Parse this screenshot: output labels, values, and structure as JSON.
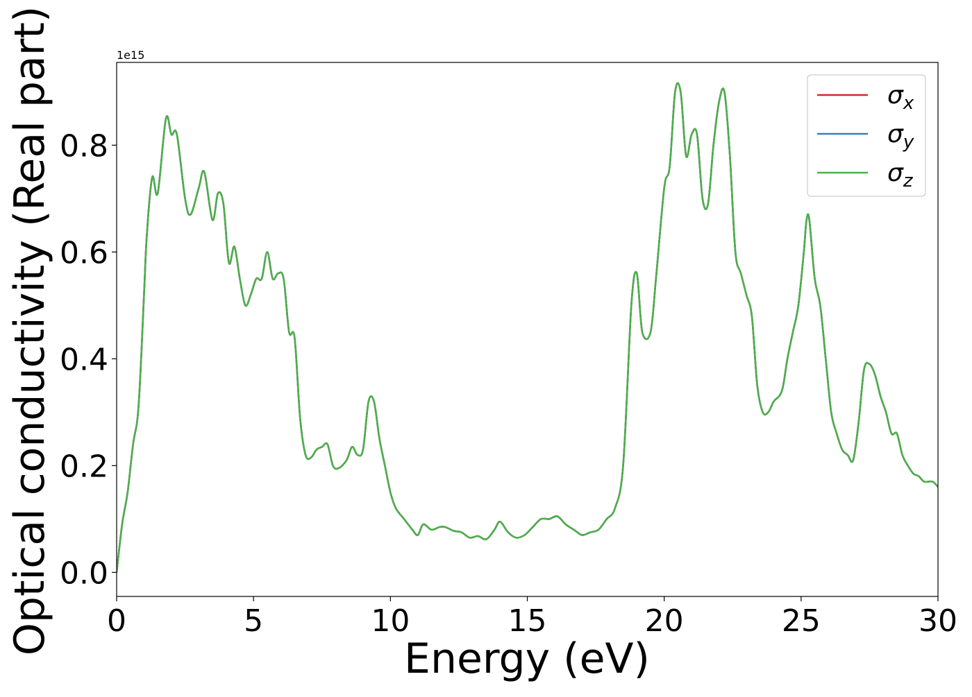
{
  "chart_data": {
    "type": "line",
    "xlabel": "Energy (eV)",
    "ylabel": "Optical conductivity (Real part)",
    "offset_label": "1e15",
    "xlim": [
      0,
      30
    ],
    "ylim": [
      -0.045,
      0.955
    ],
    "xticks": [
      0,
      5,
      10,
      15,
      20,
      25,
      30
    ],
    "xtick_labels": [
      "0",
      "5",
      "10",
      "15",
      "20",
      "25",
      "30"
    ],
    "yticks": [
      0.0,
      0.2,
      0.4,
      0.6,
      0.8
    ],
    "ytick_labels": [
      "0.0",
      "0.2",
      "0.4",
      "0.6",
      "0.8"
    ],
    "grid": false,
    "legend_position": "top-right",
    "series": [
      {
        "name": "σ",
        "subscript": "x",
        "color": "#d62728"
      },
      {
        "name": "σ",
        "subscript": "y",
        "color": "#3b7db5"
      },
      {
        "name": "σ",
        "subscript": "z",
        "color": "#4daf4a"
      }
    ],
    "x": [
      0,
      0.2,
      0.4,
      0.6,
      0.8,
      1.0,
      1.1,
      1.3,
      1.5,
      1.8,
      2.0,
      2.2,
      2.5,
      2.7,
      3.0,
      3.2,
      3.5,
      3.7,
      3.9,
      4.1,
      4.3,
      4.5,
      4.7,
      4.9,
      5.1,
      5.3,
      5.5,
      5.7,
      5.9,
      6.1,
      6.3,
      6.5,
      6.7,
      6.9,
      7.1,
      7.3,
      7.5,
      7.7,
      7.9,
      8.1,
      8.4,
      8.6,
      8.8,
      9.0,
      9.2,
      9.4,
      9.6,
      9.8,
      10.0,
      10.2,
      10.5,
      10.8,
      11.0,
      11.2,
      11.5,
      11.8,
      12.0,
      12.3,
      12.6,
      12.9,
      13.2,
      13.5,
      13.8,
      14.0,
      14.3,
      14.6,
      14.9,
      15.2,
      15.5,
      15.8,
      16.1,
      16.4,
      16.7,
      17.0,
      17.3,
      17.6,
      17.9,
      18.2,
      18.5,
      18.8,
      19.0,
      19.2,
      19.5,
      19.7,
      20.0,
      20.2,
      20.4,
      20.6,
      20.8,
      21.0,
      21.2,
      21.4,
      21.6,
      21.8,
      22.0,
      22.2,
      22.4,
      22.6,
      22.8,
      23.0,
      23.2,
      23.4,
      23.6,
      23.8,
      24.0,
      24.3,
      24.5,
      24.7,
      24.9,
      25.1,
      25.2,
      25.3,
      25.5,
      25.7,
      25.9,
      26.1,
      26.3,
      26.5,
      26.7,
      26.9,
      27.1,
      27.3,
      27.5,
      27.7,
      27.9,
      28.1,
      28.3,
      28.5,
      28.7,
      28.9,
      29.1,
      29.3,
      29.5,
      29.8,
      30.0
    ],
    "y": [
      0.0,
      0.09,
      0.15,
      0.24,
      0.31,
      0.52,
      0.63,
      0.74,
      0.71,
      0.85,
      0.82,
      0.82,
      0.7,
      0.67,
      0.72,
      0.75,
      0.66,
      0.71,
      0.69,
      0.58,
      0.61,
      0.55,
      0.5,
      0.52,
      0.55,
      0.55,
      0.6,
      0.55,
      0.56,
      0.55,
      0.45,
      0.44,
      0.29,
      0.22,
      0.215,
      0.23,
      0.235,
      0.24,
      0.2,
      0.195,
      0.21,
      0.235,
      0.22,
      0.23,
      0.32,
      0.32,
      0.25,
      0.2,
      0.15,
      0.12,
      0.1,
      0.08,
      0.07,
      0.09,
      0.08,
      0.085,
      0.085,
      0.078,
      0.075,
      0.065,
      0.068,
      0.062,
      0.08,
      0.095,
      0.075,
      0.065,
      0.07,
      0.085,
      0.1,
      0.1,
      0.105,
      0.09,
      0.08,
      0.07,
      0.075,
      0.08,
      0.1,
      0.12,
      0.2,
      0.5,
      0.56,
      0.45,
      0.45,
      0.55,
      0.72,
      0.76,
      0.9,
      0.9,
      0.78,
      0.82,
      0.82,
      0.7,
      0.69,
      0.8,
      0.88,
      0.9,
      0.78,
      0.6,
      0.56,
      0.52,
      0.48,
      0.35,
      0.3,
      0.3,
      0.32,
      0.34,
      0.4,
      0.45,
      0.5,
      0.6,
      0.66,
      0.66,
      0.55,
      0.5,
      0.4,
      0.3,
      0.26,
      0.23,
      0.22,
      0.21,
      0.28,
      0.38,
      0.39,
      0.37,
      0.33,
      0.3,
      0.26,
      0.26,
      0.22,
      0.2,
      0.185,
      0.18,
      0.17,
      0.17,
      0.16
    ]
  }
}
